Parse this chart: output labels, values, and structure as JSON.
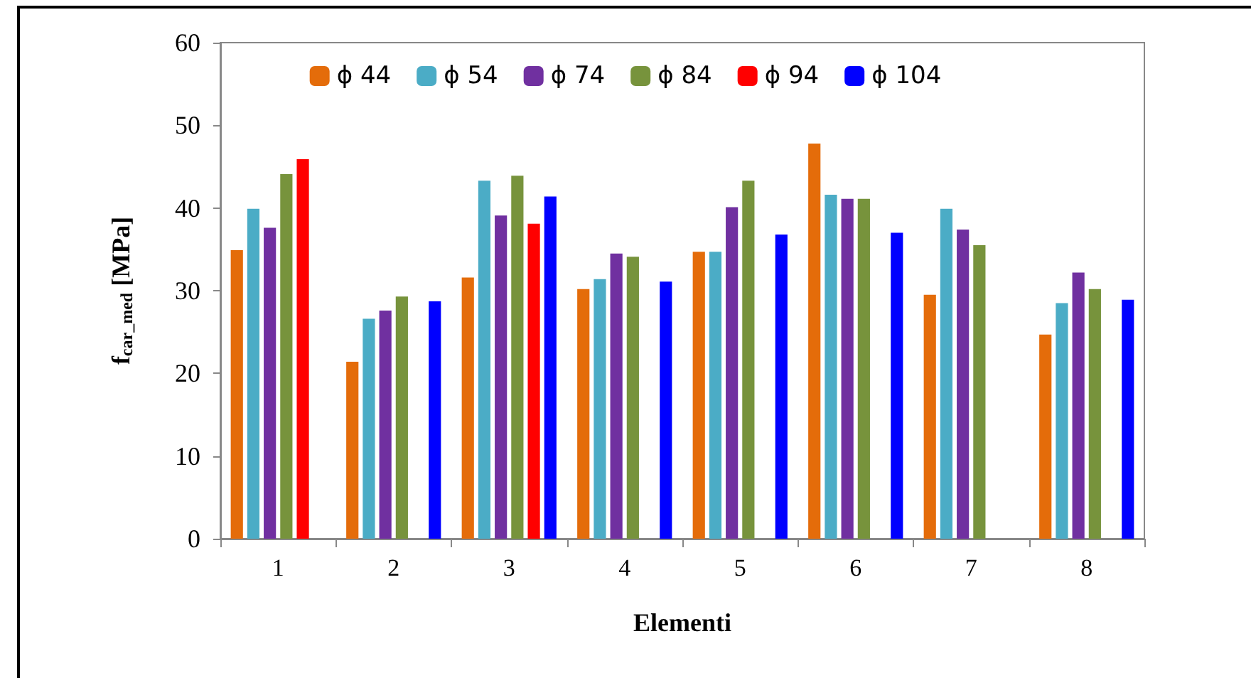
{
  "chart_data": {
    "type": "bar",
    "xlabel": "Elementi",
    "ylabel": "f$_{car_med}$ [MPa]",
    "categories": [
      "1",
      "2",
      "3",
      "4",
      "5",
      "6",
      "7",
      "8"
    ],
    "series": [
      {
        "name": "ϕ 44",
        "color": "#e46c0a",
        "values": [
          34.9,
          21.4,
          31.6,
          30.2,
          34.7,
          47.8,
          29.5,
          24.7
        ]
      },
      {
        "name": "ϕ 54",
        "color": "#4bacc6",
        "values": [
          39.9,
          26.6,
          43.3,
          31.4,
          34.7,
          41.6,
          39.9,
          28.5
        ]
      },
      {
        "name": "ϕ 74",
        "color": "#7030a0",
        "values": [
          37.6,
          27.6,
          39.1,
          34.5,
          40.1,
          41.1,
          37.4,
          32.2
        ]
      },
      {
        "name": "ϕ 84",
        "color": "#77933c",
        "values": [
          44.1,
          29.3,
          43.9,
          34.1,
          43.3,
          41.1,
          35.5,
          30.2
        ]
      },
      {
        "name": "ϕ 94",
        "color": "#ff0000",
        "values": [
          45.9,
          null,
          38.1,
          null,
          null,
          null,
          null,
          null
        ]
      },
      {
        "name": "ϕ 104",
        "color": "#0000ff",
        "values": [
          null,
          28.7,
          41.4,
          31.1,
          36.8,
          37.0,
          null,
          28.9
        ]
      }
    ],
    "ylim": [
      0,
      60
    ],
    "yticks": [
      0,
      10,
      20,
      30,
      40,
      50,
      60
    ],
    "grid": false,
    "legend": "top"
  }
}
